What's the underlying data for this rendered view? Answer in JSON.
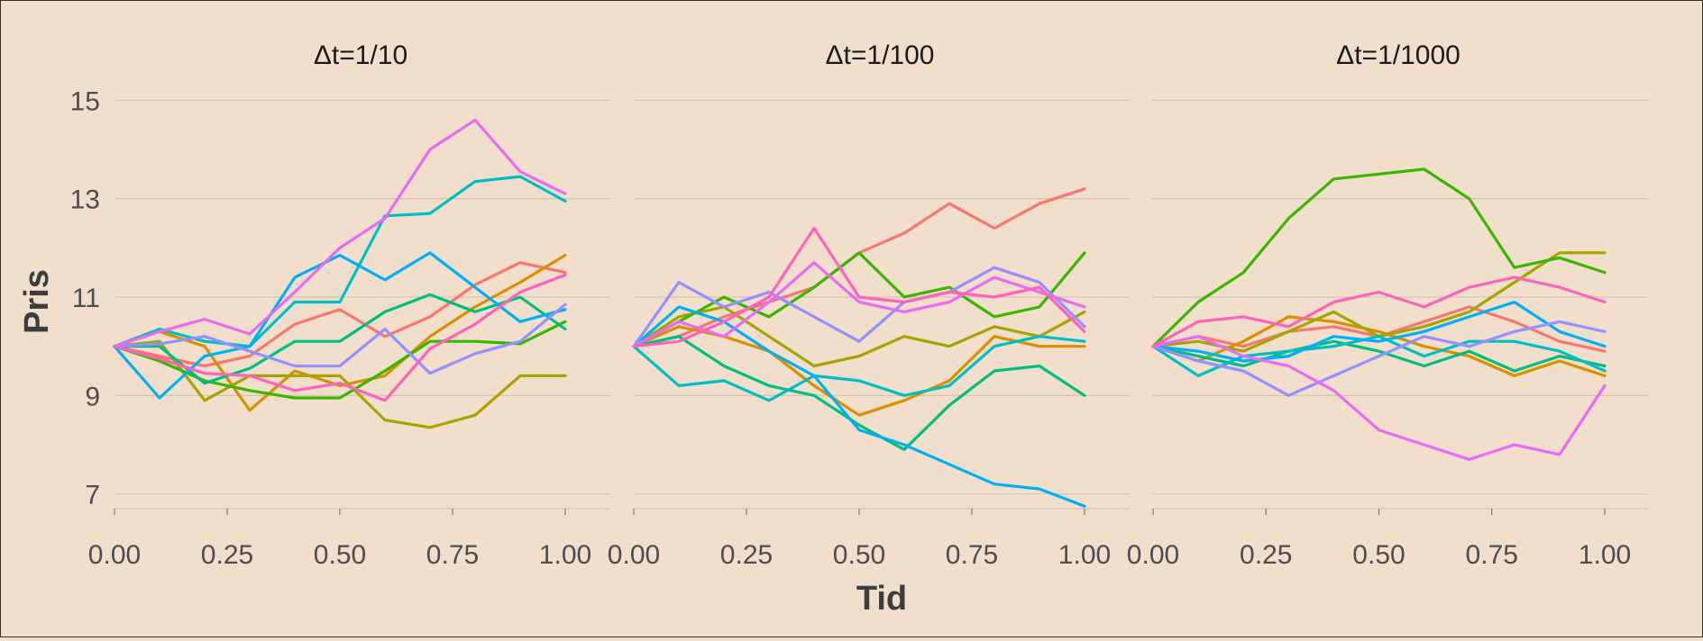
{
  "chart_data": {
    "type": "line",
    "xlabel": "Tid",
    "ylabel": "Pris",
    "xlim": [
      0,
      1
    ],
    "ylim": [
      6.7,
      15.3
    ],
    "y_ticks": [
      7,
      9,
      11,
      13,
      15
    ],
    "x_ticks": [
      "0.00",
      "0.25",
      "0.50",
      "0.75",
      "1.00"
    ],
    "x_tick_values": [
      0,
      0.25,
      0.5,
      0.75,
      1.0
    ],
    "grid": "horizontal",
    "legend": "none",
    "colors": [
      "#F8766D",
      "#D89000",
      "#A3A500",
      "#39B600",
      "#00BF7D",
      "#00BFC4",
      "#00B0F6",
      "#9590FF",
      "#E76BF3",
      "#FF62BC"
    ],
    "panels": [
      {
        "title": "Δt=1/10",
        "x": [
          0,
          0.1,
          0.2,
          0.3,
          0.4,
          0.5,
          0.6,
          0.7,
          0.8,
          0.9,
          1.0
        ],
        "series": [
          {
            "color": "#F8766D",
            "values": [
              10,
              9.8,
              9.6,
              9.8,
              10.45,
              10.75,
              10.2,
              10.6,
              11.25,
              11.7,
              11.5
            ]
          },
          {
            "color": "#D89000",
            "values": [
              10,
              10.3,
              10.0,
              8.7,
              9.5,
              9.2,
              9.4,
              10.2,
              10.8,
              11.3,
              11.85
            ]
          },
          {
            "color": "#A3A500",
            "values": [
              10,
              10.1,
              8.9,
              9.4,
              9.4,
              9.4,
              8.5,
              8.35,
              8.6,
              9.4,
              9.4
            ]
          },
          {
            "color": "#39B600",
            "values": [
              10,
              9.7,
              9.3,
              9.1,
              8.95,
              8.95,
              9.5,
              10.1,
              10.1,
              10.05,
              10.5
            ]
          },
          {
            "color": "#00BF7D",
            "values": [
              10,
              10.0,
              9.25,
              9.55,
              10.1,
              10.1,
              10.7,
              11.05,
              10.7,
              11.0,
              10.35
            ]
          },
          {
            "color": "#00BFC4",
            "values": [
              10,
              10.35,
              10.1,
              10.0,
              10.9,
              10.9,
              12.65,
              12.7,
              13.35,
              13.45,
              12.95
            ]
          },
          {
            "color": "#00B0F6",
            "values": [
              10,
              8.95,
              9.8,
              10.0,
              11.4,
              11.85,
              11.35,
              11.9,
              11.2,
              10.5,
              10.75
            ]
          },
          {
            "color": "#9590FF",
            "values": [
              10,
              10.05,
              10.2,
              9.9,
              9.6,
              9.6,
              10.35,
              9.45,
              9.85,
              10.1,
              10.85
            ]
          },
          {
            "color": "#E76BF3",
            "values": [
              10,
              10.3,
              10.55,
              10.25,
              11.1,
              12.0,
              12.6,
              14.0,
              14.6,
              13.55,
              13.1
            ]
          },
          {
            "color": "#FF62BC",
            "values": [
              10,
              9.75,
              9.45,
              9.4,
              9.1,
              9.25,
              8.9,
              9.95,
              10.45,
              11.1,
              11.45
            ]
          }
        ]
      },
      {
        "title": "Δt=1/100",
        "x": [
          0,
          0.1,
          0.2,
          0.3,
          0.4,
          0.5,
          0.6,
          0.7,
          0.8,
          0.9,
          1.0
        ],
        "series": [
          {
            "color": "#F8766D",
            "values": [
              10,
              10.2,
              10.6,
              10.9,
              11.2,
              11.9,
              12.3,
              12.9,
              12.4,
              12.9,
              13.2
            ]
          },
          {
            "color": "#D89000",
            "values": [
              10,
              10.4,
              10.2,
              9.9,
              9.2,
              8.6,
              8.9,
              9.3,
              10.2,
              10.0,
              10.0
            ]
          },
          {
            "color": "#A3A500",
            "values": [
              10,
              10.6,
              10.8,
              10.2,
              9.6,
              9.8,
              10.2,
              10.0,
              10.4,
              10.2,
              10.7
            ]
          },
          {
            "color": "#39B600",
            "values": [
              10,
              10.5,
              11.0,
              10.6,
              11.2,
              11.9,
              11.0,
              11.2,
              10.6,
              10.8,
              11.9
            ]
          },
          {
            "color": "#00BF7D",
            "values": [
              10,
              10.2,
              9.6,
              9.2,
              9.0,
              8.4,
              7.9,
              8.8,
              9.5,
              9.6,
              9.0
            ]
          },
          {
            "color": "#00BFC4",
            "values": [
              10,
              9.2,
              9.3,
              8.9,
              9.4,
              9.3,
              9.0,
              9.2,
              10.0,
              10.2,
              10.1
            ]
          },
          {
            "color": "#00B0F6",
            "values": [
              10,
              10.8,
              10.5,
              9.9,
              9.4,
              8.3,
              8.0,
              7.6,
              7.2,
              7.1,
              6.75
            ]
          },
          {
            "color": "#9590FF",
            "values": [
              10,
              11.3,
              10.8,
              11.1,
              10.6,
              10.1,
              10.9,
              11.1,
              11.6,
              11.3,
              10.4
            ]
          },
          {
            "color": "#E76BF3",
            "values": [
              10,
              10.5,
              10.2,
              10.9,
              11.7,
              10.9,
              10.7,
              10.9,
              11.4,
              11.1,
              10.8
            ]
          },
          {
            "color": "#FF62BC",
            "values": [
              10,
              10.1,
              10.5,
              11.0,
              12.4,
              11.0,
              10.9,
              11.1,
              11.0,
              11.2,
              10.3
            ]
          }
        ]
      },
      {
        "title": "Δt=1/1000",
        "x": [
          0,
          0.1,
          0.2,
          0.3,
          0.4,
          0.5,
          0.6,
          0.7,
          0.8,
          0.9,
          1.0
        ],
        "series": [
          {
            "color": "#F8766D",
            "values": [
              10,
              10.2,
              10.0,
              10.3,
              10.4,
              10.2,
              10.5,
              10.8,
              10.5,
              10.1,
              9.9
            ]
          },
          {
            "color": "#D89000",
            "values": [
              10,
              9.7,
              10.1,
              10.6,
              10.5,
              10.3,
              10.0,
              9.8,
              9.4,
              9.7,
              9.4
            ]
          },
          {
            "color": "#A3A500",
            "values": [
              10,
              10.1,
              9.9,
              10.3,
              10.7,
              10.2,
              10.4,
              10.7,
              11.3,
              11.9,
              11.9
            ]
          },
          {
            "color": "#39B600",
            "values": [
              10,
              10.9,
              11.5,
              12.6,
              13.4,
              13.5,
              13.6,
              13.0,
              11.6,
              11.8,
              11.5
            ]
          },
          {
            "color": "#00BF7D",
            "values": [
              10,
              9.8,
              9.6,
              9.9,
              10.1,
              9.9,
              9.6,
              9.9,
              9.5,
              9.8,
              9.6
            ]
          },
          {
            "color": "#00BFC4",
            "values": [
              10,
              9.4,
              9.8,
              9.9,
              10.0,
              10.2,
              9.8,
              10.1,
              10.1,
              9.9,
              9.5
            ]
          },
          {
            "color": "#00B0F6",
            "values": [
              10,
              9.9,
              9.7,
              9.8,
              10.2,
              10.1,
              10.3,
              10.6,
              10.9,
              10.3,
              10.0
            ]
          },
          {
            "color": "#9590FF",
            "values": [
              10,
              9.7,
              9.5,
              9.0,
              9.4,
              9.8,
              10.2,
              10.0,
              10.3,
              10.5,
              10.3
            ]
          },
          {
            "color": "#E76BF3",
            "values": [
              10,
              10.2,
              9.8,
              9.6,
              9.1,
              8.3,
              8.0,
              7.7,
              8.0,
              7.8,
              9.2
            ]
          },
          {
            "color": "#FF62BC",
            "values": [
              10,
              10.5,
              10.6,
              10.4,
              10.9,
              11.1,
              10.8,
              11.2,
              11.4,
              11.2,
              10.9
            ]
          }
        ]
      }
    ]
  }
}
